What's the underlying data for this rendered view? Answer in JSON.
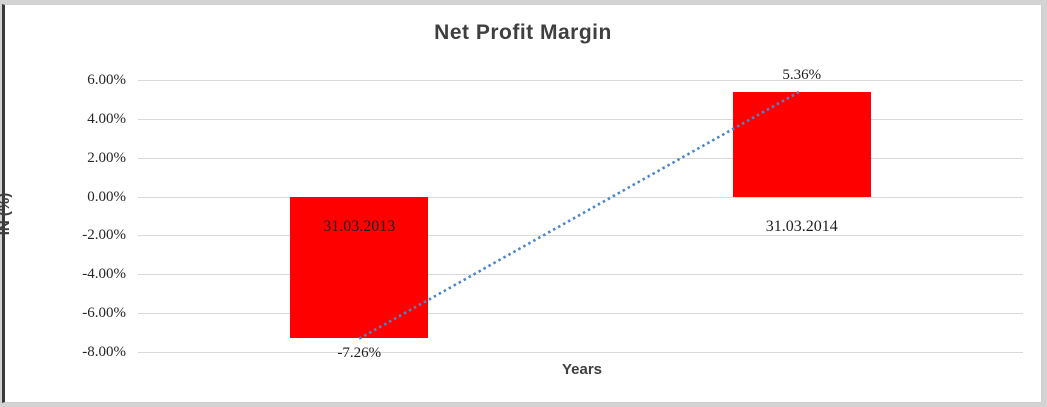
{
  "window": {
    "background_color": "#d3d3d3",
    "left_edge_border_color": "#3a3a3a",
    "chart_background": "#ffffff"
  },
  "chart_data": {
    "type": "bar",
    "title": "Net Profit Margin",
    "xlabel": "Years",
    "ylabel": "IN (%)",
    "categories": [
      "31.03.2013",
      "31.03.2014"
    ],
    "values": [
      -7.26,
      5.36
    ],
    "data_labels": [
      "-7.26%",
      "5.36%"
    ],
    "yticks": [
      6,
      4,
      2,
      0,
      -2,
      -4,
      -6,
      -8
    ],
    "ytick_labels": [
      "6.00%",
      "4.00%",
      "2.00%",
      "0.00%",
      "-2.00%",
      "-4.00%",
      "-6.00%",
      "-8.00%"
    ],
    "ylim": [
      -8,
      6
    ],
    "grid": true,
    "legend": false,
    "bar_color": "#ff0000",
    "gridline_color": "#d9d9d9",
    "label_color": "#1f1f1f",
    "trendline": {
      "kind": "linear",
      "style": "dotted",
      "color": "#4a86c8",
      "from_value": -7.26,
      "to_value": 5.36
    }
  }
}
